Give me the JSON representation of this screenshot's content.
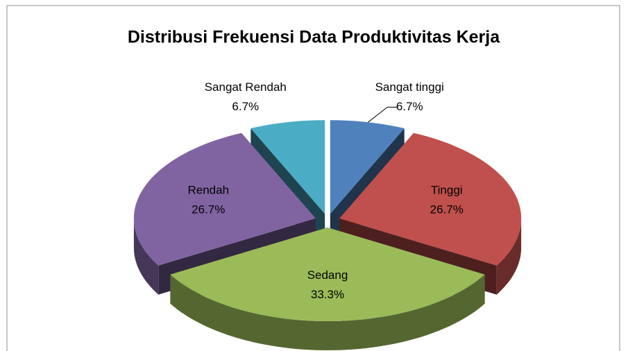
{
  "chart_data": {
    "type": "pie3d",
    "title": "Distribusi Frekuensi Data Produktivitas Kerja",
    "categories": [
      "Sangat tinggi",
      "Tinggi",
      "Sedang",
      "Rendah",
      "Sangat Rendah"
    ],
    "values": [
      6.7,
      26.7,
      33.3,
      26.7,
      6.7
    ],
    "value_labels": [
      "6.7%",
      "26.7%",
      "33.3%",
      "26.7%",
      "6.7%"
    ],
    "colors": [
      "#4f81bd",
      "#c0504d",
      "#9bbb59",
      "#8064a2",
      "#4bacc6"
    ]
  }
}
